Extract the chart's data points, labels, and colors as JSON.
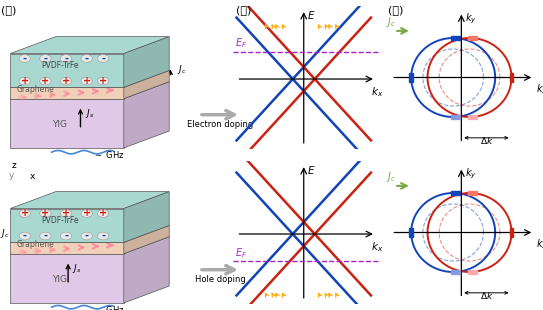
{
  "bg_color": "#ffffff",
  "panel_labels": [
    "(가)",
    "(나)",
    "(다)"
  ],
  "electron_doping_label": "Electron doping",
  "hole_doping_label": "Hole doping",
  "EF_label": "$E_F$",
  "kx_label": "$k_x$",
  "ky_label": "$k_y$",
  "E_label": "$E$",
  "Jc_label": "$J_c$",
  "Js_label": "$J_s$",
  "delta_k_label": "$\\Delta k$",
  "blue_color": "#1144bb",
  "red_color": "#cc2211",
  "pink_color": "#ffaaaa",
  "lightblue_color": "#aabbff",
  "purple_color": "#aa22cc",
  "green_arrow_color": "#77aa44",
  "pvdf_color": "#a8d8d0",
  "yig_color": "#e0c8e0",
  "graphene_color": "#f0d0b8",
  "spin_arrow_color": "#ff8899",
  "wave_color": "#4488dd",
  "charge_pos": "#cc2211",
  "charge_neg": "#1144bb"
}
